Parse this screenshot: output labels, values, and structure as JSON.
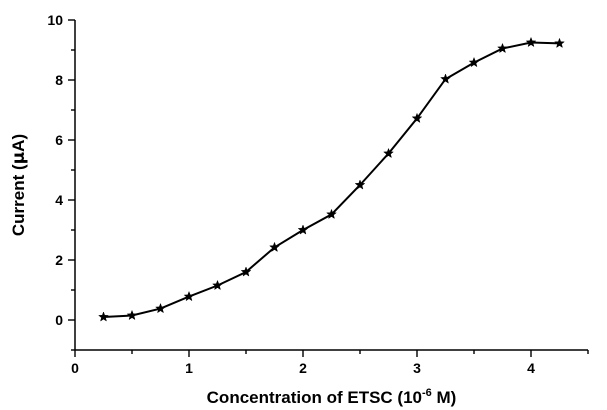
{
  "chart_data": {
    "type": "line",
    "title": "",
    "xlabel": {
      "prefix": "Concentration of ETSC (10",
      "superscript": "-6",
      "suffix": " M)"
    },
    "ylabel": {
      "prefix": "Current (",
      "greek": "μ",
      "suffix": "A)"
    },
    "xlim": [
      0,
      4.5
    ],
    "ylim": [
      -1,
      10
    ],
    "x_ticks": [
      0,
      1,
      2,
      3,
      4
    ],
    "x_tick_labels": [
      "0",
      "1",
      "2",
      "3",
      "4"
    ],
    "y_ticks": [
      0,
      2,
      4,
      6,
      8,
      10
    ],
    "y_tick_labels": [
      "0",
      "2",
      "4",
      "6",
      "8",
      "10"
    ],
    "grid": false,
    "marker": "star",
    "series": [
      {
        "x": [
          0.25,
          0.5,
          0.75,
          1.0,
          1.25,
          1.5,
          1.75,
          2.0,
          2.25,
          2.5,
          2.75,
          3.0,
          3.25,
          3.5,
          3.75,
          4.0,
          4.25
        ],
        "y": [
          0.1,
          0.15,
          0.38,
          0.78,
          1.15,
          1.6,
          2.42,
          3.0,
          3.52,
          4.5,
          5.55,
          6.72,
          8.03,
          8.58,
          9.05,
          9.25,
          9.22
        ]
      }
    ]
  }
}
